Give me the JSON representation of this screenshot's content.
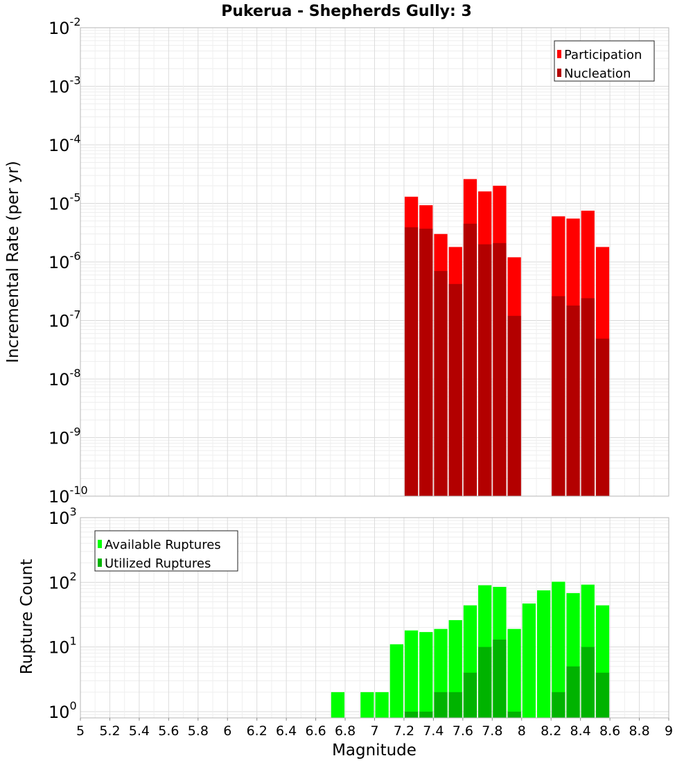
{
  "chart_data": [
    {
      "type": "bar",
      "title": "Pukerua - Shepherds Gully: 3",
      "xlabel": "Magnitude",
      "ylabel": "Incremental Rate (per yr)",
      "y_scale": "log",
      "ylim": [
        1e-10,
        0.01
      ],
      "xlim": [
        5,
        9
      ],
      "bar_width": 0.1,
      "legend_position": "top-right",
      "grid": true,
      "y_tick_exponents": [
        -2,
        -3,
        -4,
        -5,
        -6,
        -7,
        -8,
        -9,
        -10
      ],
      "series": [
        {
          "name": "Participation",
          "color": "#ff0000",
          "x": [
            7.25,
            7.35,
            7.45,
            7.55,
            7.65,
            7.75,
            7.85,
            7.95,
            8.25,
            8.35,
            8.45,
            8.55
          ],
          "values": [
            1.3e-05,
            9.3e-06,
            3e-06,
            1.8e-06,
            2.6e-05,
            1.6e-05,
            2e-05,
            1.2e-06,
            6e-06,
            5.5e-06,
            7.5e-06,
            1.8e-06
          ]
        },
        {
          "name": "Nucleation",
          "color": "#b30000",
          "x": [
            7.25,
            7.35,
            7.45,
            7.55,
            7.65,
            7.75,
            7.85,
            7.95,
            8.25,
            8.35,
            8.45,
            8.55
          ],
          "values": [
            3.9e-06,
            3.7e-06,
            7e-07,
            4.2e-07,
            4.5e-06,
            2e-06,
            2.1e-06,
            1.2e-07,
            2.6e-07,
            1.8e-07,
            2.4e-07,
            4.9e-08
          ]
        }
      ]
    },
    {
      "type": "bar",
      "title": "",
      "xlabel": "Magnitude",
      "ylabel": "Rupture Count",
      "y_scale": "log",
      "ylim": [
        0.8,
        1000
      ],
      "xlim": [
        5,
        9
      ],
      "bar_width": 0.1,
      "legend_position": "top-left",
      "grid": true,
      "y_tick_exponents": [
        3,
        2,
        1,
        0
      ],
      "x_ticks": [
        "5",
        "5.2",
        "5.4",
        "5.6",
        "5.8",
        "6",
        "6.2",
        "6.4",
        "6.6",
        "6.8",
        "7",
        "7.2",
        "7.4",
        "7.6",
        "7.8",
        "8",
        "8.2",
        "8.4",
        "8.6",
        "8.8",
        "9"
      ],
      "series": [
        {
          "name": "Available Ruptures",
          "color": "#00ff00",
          "x": [
            6.75,
            6.95,
            7.05,
            7.15,
            7.25,
            7.35,
            7.45,
            7.55,
            7.65,
            7.75,
            7.85,
            7.95,
            8.05,
            8.15,
            8.25,
            8.35,
            8.45,
            8.55
          ],
          "values": [
            2,
            2,
            2,
            11,
            18,
            17,
            19,
            26,
            44,
            90,
            85,
            19,
            47,
            75,
            102,
            68,
            92,
            44
          ]
        },
        {
          "name": "Utilized Ruptures",
          "color": "#00b300",
          "x": [
            7.25,
            7.35,
            7.45,
            7.55,
            7.65,
            7.75,
            7.85,
            7.95,
            8.25,
            8.35,
            8.45,
            8.55
          ],
          "values": [
            1,
            1,
            2,
            2,
            4,
            10,
            13,
            1,
            2,
            5,
            10,
            4
          ]
        }
      ]
    }
  ]
}
